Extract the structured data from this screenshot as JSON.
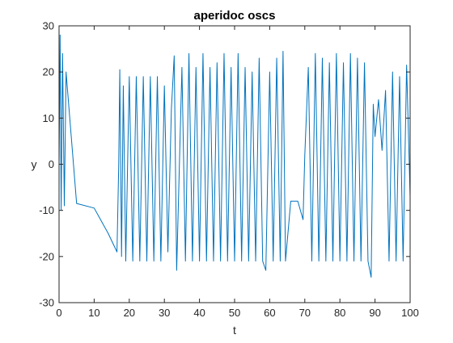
{
  "colors": {
    "series": "#0072BD",
    "axis": "#262626",
    "background": "#ffffff"
  },
  "chart_data": {
    "type": "line",
    "title": "aperidoc oscs",
    "xlabel": "t",
    "ylabel": "y",
    "xlim": [
      0,
      100
    ],
    "ylim": [
      -30,
      30
    ],
    "xticks": [
      0,
      10,
      20,
      30,
      40,
      50,
      60,
      70,
      80,
      90,
      100
    ],
    "yticks": [
      -30,
      -20,
      -10,
      0,
      10,
      20,
      30
    ],
    "xtick_labels": [
      "0",
      "10",
      "20",
      "30",
      "40",
      "50",
      "60",
      "70",
      "80",
      "90",
      "100"
    ],
    "ytick_labels": [
      "-30",
      "-20",
      "-10",
      "0",
      "10",
      "20",
      "30"
    ],
    "grid": false,
    "legend": false,
    "series": [
      {
        "description_hidden": true,
        "x": [
          0,
          0.3,
          0.6,
          1.0,
          1.5,
          2.0,
          5.0,
          10.0,
          14.0,
          16.5,
          17.0,
          17.3,
          17.8,
          18.3,
          19.0,
          20.0,
          21.0,
          22.0,
          23.0,
          24.0,
          25.0,
          26.0,
          27.0,
          28.0,
          29.0,
          30.0,
          31.0,
          32.0,
          32.8,
          33.5,
          35.0,
          36.0,
          37.0,
          38.0,
          39.0,
          40.0,
          41.0,
          42.0,
          43.0,
          44.0,
          45.0,
          46.0,
          47.0,
          48.0,
          49.0,
          50.0,
          51.0,
          52.0,
          53.0,
          54.0,
          55.0,
          56.0,
          57.0,
          58.0,
          58.9,
          60.0,
          61.0,
          62.0,
          63.0,
          63.8,
          64.5,
          66.0,
          68.0,
          69.5,
          70.0,
          71.0,
          72.0,
          73.0,
          74.0,
          75.0,
          76.0,
          77.0,
          78.0,
          79.0,
          80.0,
          81.0,
          82.0,
          83.0,
          84.0,
          85.0,
          86.0,
          87.0,
          88.0,
          88.9,
          89.5,
          90.0,
          91.0,
          92.0,
          93.0,
          94.0,
          95.0,
          96.0,
          97.0,
          98.0,
          99.0,
          100.0
        ],
        "y": [
          0,
          28,
          -10,
          24,
          -9,
          20,
          -8.5,
          -9.5,
          -15,
          -19,
          0,
          20.5,
          -20,
          17,
          -21,
          19,
          -21,
          19,
          -21,
          19,
          -21,
          19,
          -21,
          19,
          -21,
          17,
          -19,
          12,
          23.5,
          -23,
          21,
          -21,
          24,
          -21,
          21,
          -21,
          24,
          -21,
          21,
          -21,
          22,
          -21,
          24,
          -21,
          21,
          -21,
          24,
          -21,
          21,
          -21,
          20,
          -21,
          23,
          -21,
          -23,
          20,
          -21,
          23,
          -21,
          24.5,
          -21,
          -8,
          -8,
          -12,
          2,
          21,
          -21,
          24,
          -21,
          23,
          -21,
          22,
          -21,
          24,
          -21,
          22,
          -21,
          24,
          -21,
          23,
          -21,
          22,
          -21,
          -24.5,
          13,
          6,
          14,
          3,
          16,
          -21,
          20,
          -21,
          19,
          -21,
          21.5,
          -7
        ]
      }
    ]
  }
}
